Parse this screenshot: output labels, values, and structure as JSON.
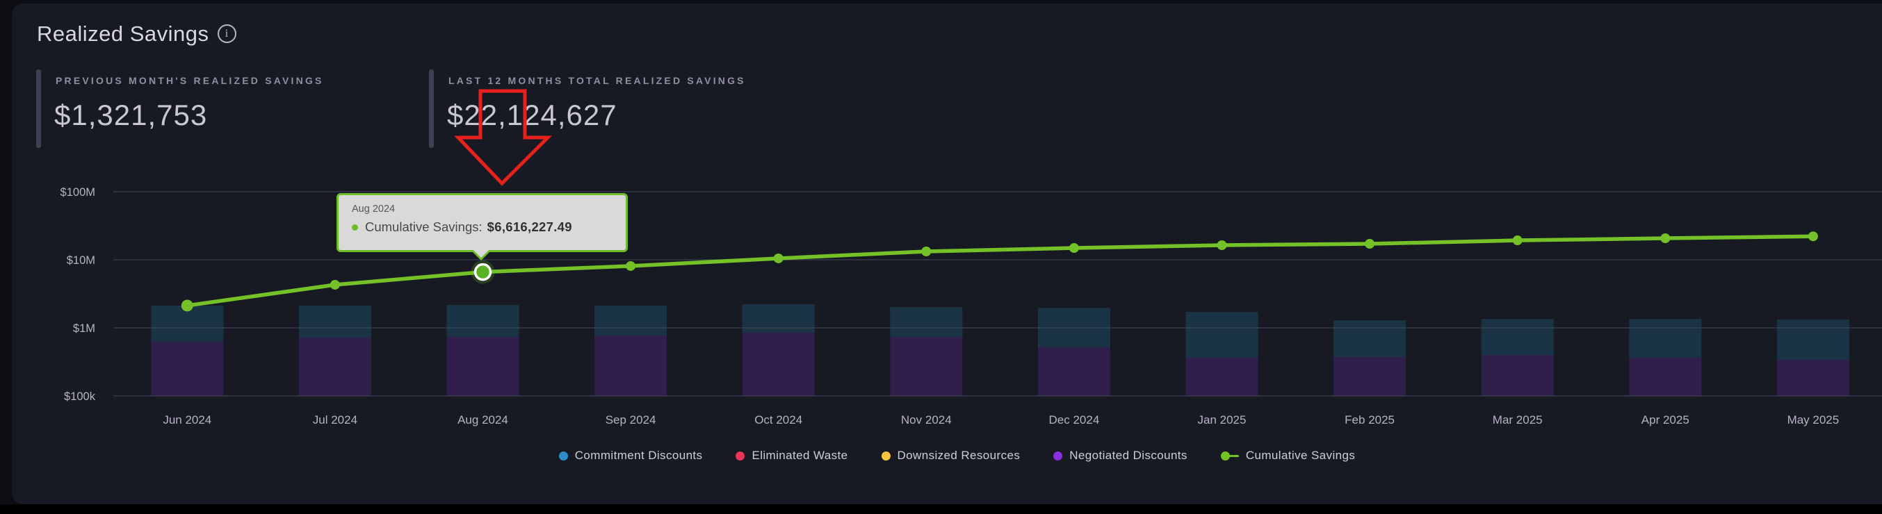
{
  "header": {
    "title": "Realized Savings"
  },
  "kpis": [
    {
      "label": "PREVIOUS MONTH'S REALIZED SAVINGS",
      "value": "$1,321,753"
    },
    {
      "label": "LAST 12 MONTHS TOTAL REALIZED SAVINGS",
      "value": "$22,124,627"
    }
  ],
  "tooltip": {
    "period": "Aug 2024",
    "series_label": "Cumulative Savings:",
    "value": "$6,616,227.49"
  },
  "chart_data": {
    "type": "bar+line",
    "title": "Realized Savings",
    "x": [
      "Jun 2024",
      "Jul 2024",
      "Aug 2024",
      "Sep 2024",
      "Oct 2024",
      "Nov 2024",
      "Dec 2024",
      "Jan 2025",
      "Feb 2025",
      "Mar 2025",
      "Apr 2025",
      "May 2025"
    ],
    "y_axis": {
      "scale": "log",
      "range": [
        100000,
        100000000
      ],
      "ticks": [
        {
          "label": "$100k",
          "value": 100000
        },
        {
          "label": "$1M",
          "value": 1000000
        },
        {
          "label": "$10M",
          "value": 10000000
        },
        {
          "label": "$100M",
          "value": 100000000
        }
      ],
      "grid": true
    },
    "bar_series": [
      {
        "name": "Negotiated Discounts",
        "color": "#8b2fe0",
        "stack_position": "bottom",
        "values": [
          625000,
          719000,
          736000,
          772000,
          849000,
          736000,
          518000,
          364000,
          373000,
          400000,
          364000,
          340000
        ]
      },
      {
        "name": "Commitment Discounts",
        "color": "#2b90c8",
        "stack_position": "top",
        "values": [
          1500000,
          1400000,
          1430000,
          1350000,
          1370000,
          1280000,
          1450000,
          1350000,
          920000,
          950000,
          990000,
          980000
        ]
      }
    ],
    "line_series": {
      "name": "Cumulative Savings",
      "color": "#74c128",
      "values": [
        2123847,
        4293510,
        6616227.49,
        8104772,
        10492336,
        13255010,
        14901450,
        16382900,
        17163215,
        19287640,
        20702118,
        22124627
      ]
    },
    "legend": [
      {
        "label": "Commitment Discounts",
        "color": "#2b90c8",
        "marker": "circle"
      },
      {
        "label": "Eliminated Waste",
        "color": "#ea3556",
        "marker": "circle"
      },
      {
        "label": "Downsized Resources",
        "color": "#f5c63e",
        "marker": "circle"
      },
      {
        "label": "Negotiated Discounts",
        "color": "#8b2fe0",
        "marker": "circle"
      },
      {
        "label": "Cumulative Savings",
        "color": "#74c128",
        "marker": "line-dot"
      }
    ],
    "legend_position": "bottom",
    "highlight": {
      "x": "Aug 2024",
      "series": "Cumulative Savings",
      "value": 6616227.49
    }
  },
  "colors": {
    "panel_background": "#171a22",
    "page_background": "#0d0e13",
    "grid_line": "#414659",
    "axis_text": "#b6b3c5",
    "tooltip_background": "#d9d9d9",
    "tooltip_border": "#6fbe27",
    "red_arrow": "#e8211d",
    "kpi_accent": "#3d4152"
  }
}
